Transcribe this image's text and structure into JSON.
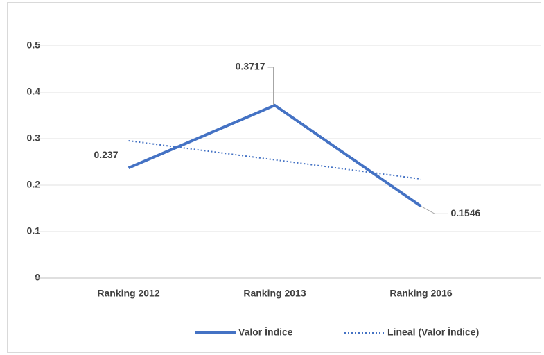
{
  "chart_data": {
    "type": "line",
    "categories": [
      "Ranking 2012",
      "Ranking 2013",
      "Ranking 2016"
    ],
    "series": [
      {
        "name": "Valor Índice",
        "color": "#4472c4",
        "values": [
          0.237,
          0.3717,
          0.1546
        ],
        "style": "solid"
      },
      {
        "name": "Lineal (Valor Índice)",
        "color": "#4472c4",
        "values": [
          0.2956,
          0.2544,
          0.2132
        ],
        "style": "dotted"
      }
    ],
    "data_labels_series": 0,
    "ylim": [
      0,
      0.5
    ],
    "yticks": [
      0,
      0.1,
      0.2,
      0.3,
      0.4,
      0.5
    ],
    "grid": true,
    "legend": "bottom"
  }
}
